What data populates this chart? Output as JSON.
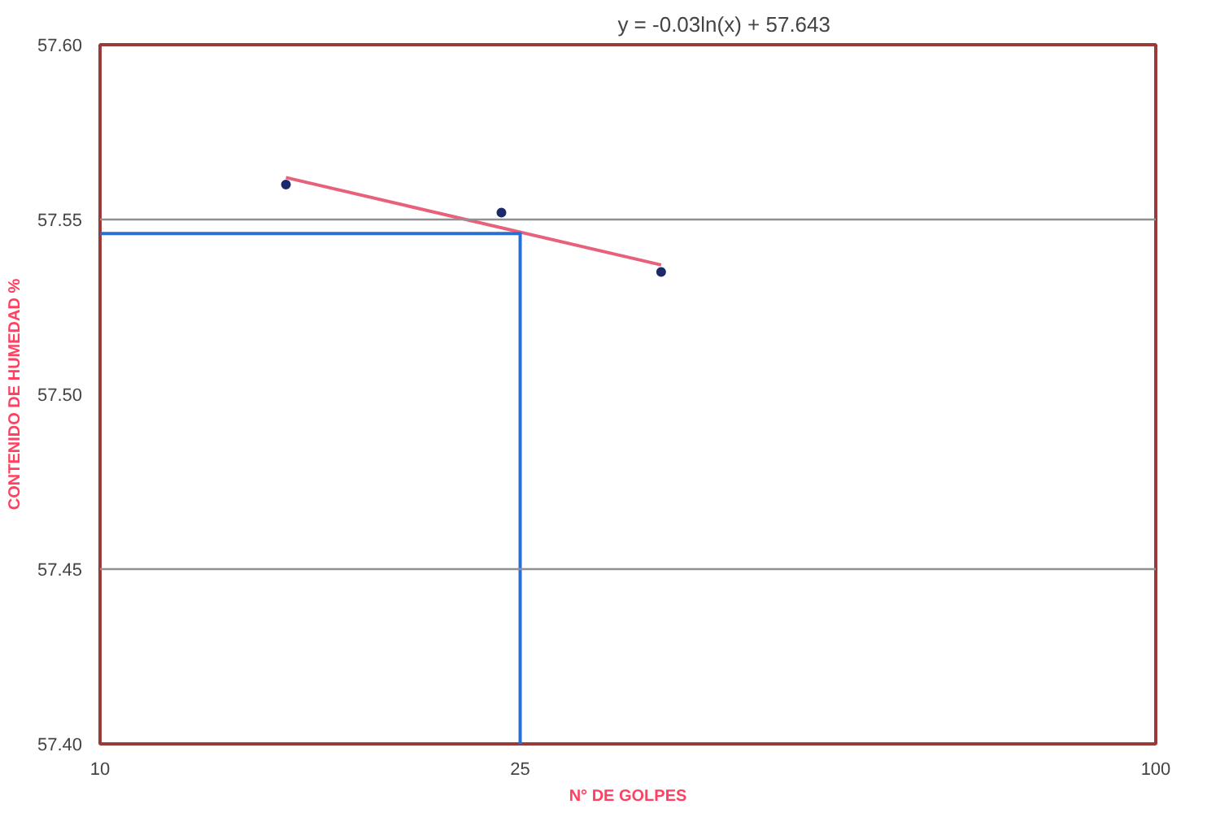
{
  "chart_data": {
    "type": "scatter",
    "xlabel": "N° DE GOLPES",
    "ylabel": "CONTENIDO DE HUMEDAD %",
    "log": "x",
    "xlim": [
      10,
      100
    ],
    "xticks": [
      10,
      25,
      100
    ],
    "ylim": [
      57.4,
      57.6
    ],
    "yticks": [
      {
        "value": 57.4,
        "label": "57.40"
      },
      {
        "value": 57.45,
        "label": "57.45"
      },
      {
        "value": 57.5,
        "label": "57.50"
      },
      {
        "value": 57.55,
        "label": "57.55"
      },
      {
        "value": 57.6,
        "label": "57.60"
      }
    ],
    "grid": false,
    "series": [
      {
        "marker": "circle",
        "color": "#1a2a6a",
        "x": [
          15,
          24,
          34
        ],
        "values": [
          57.56,
          57.552,
          57.535
        ]
      },
      {
        "type": "line",
        "color": "#e8607a",
        "x": [
          15,
          34
        ],
        "values": [
          57.562,
          57.537
        ]
      },
      {
        "type": "line",
        "color": "#2a6fd0",
        "x": [
          10,
          25,
          25
        ],
        "values": [
          57.546,
          57.546,
          57.4
        ]
      }
    ],
    "ref_lines": [
      {
        "axis": "y",
        "value": 57.55,
        "color": "#909090"
      },
      {
        "axis": "y",
        "value": 57.45,
        "color": "#909090"
      }
    ],
    "annotations": [
      "y = -0.03ln(x) + 57.643"
    ]
  }
}
